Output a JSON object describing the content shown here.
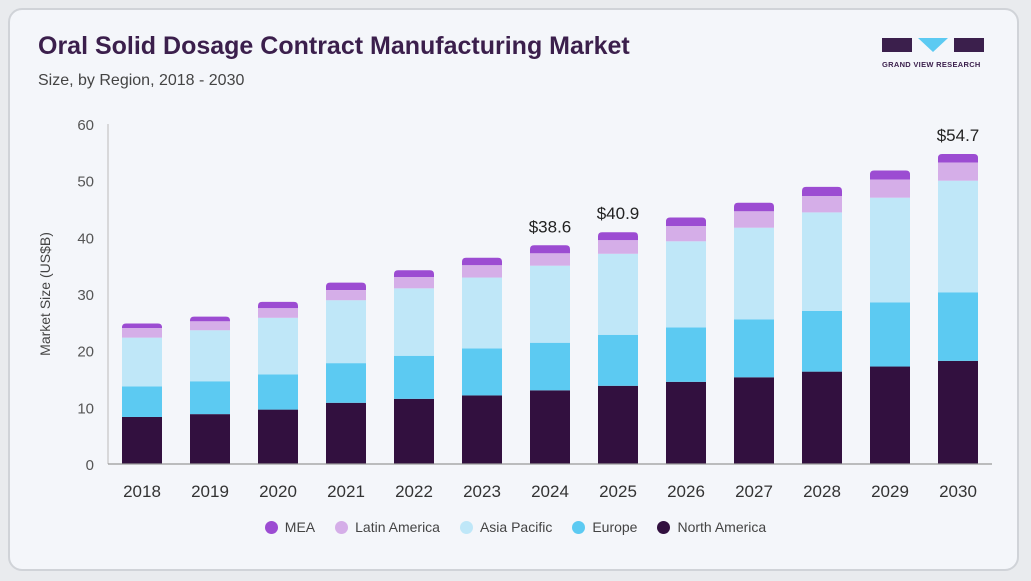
{
  "header": {
    "title": "Oral Solid Dosage Contract Manufacturing Market",
    "subtitle": "Size, by Region, 2018 - 2030",
    "logo_text": "GRAND VIEW RESEARCH"
  },
  "chart_data": {
    "type": "bar",
    "stacked": true,
    "categories": [
      "2018",
      "2019",
      "2020",
      "2021",
      "2022",
      "2023",
      "2024",
      "2025",
      "2026",
      "2027",
      "2028",
      "2029",
      "2030"
    ],
    "series": [
      {
        "name": "North America",
        "color": "#32103f",
        "values": [
          8.3,
          8.8,
          9.6,
          10.8,
          11.5,
          12.1,
          13.0,
          13.8,
          14.5,
          15.3,
          16.3,
          17.2,
          18.2
        ]
      },
      {
        "name": "Europe",
        "color": "#5ccaf2",
        "values": [
          5.4,
          5.8,
          6.2,
          7.0,
          7.6,
          8.3,
          8.4,
          9.0,
          9.6,
          10.2,
          10.7,
          11.3,
          12.1
        ]
      },
      {
        "name": "Asia Pacific",
        "color": "#bfe7f8",
        "values": [
          8.6,
          9.0,
          10.0,
          11.1,
          11.9,
          12.5,
          13.6,
          14.3,
          15.2,
          16.2,
          17.4,
          18.5,
          19.7
        ]
      },
      {
        "name": "Latin America",
        "color": "#d5aee8",
        "values": [
          1.7,
          1.6,
          1.7,
          1.8,
          2.0,
          2.2,
          2.2,
          2.4,
          2.7,
          2.9,
          2.9,
          3.2,
          3.2
        ]
      },
      {
        "name": "MEA",
        "color": "#9c4cd2",
        "values": [
          0.8,
          0.8,
          1.1,
          1.3,
          1.2,
          1.3,
          1.4,
          1.4,
          1.5,
          1.5,
          1.6,
          1.6,
          1.5
        ]
      }
    ],
    "legend_order": [
      "MEA",
      "Latin America",
      "Asia Pacific",
      "Europe",
      "North America"
    ],
    "annotations": [
      {
        "category": "2024",
        "label": "$38.6"
      },
      {
        "category": "2025",
        "label": "$40.9"
      },
      {
        "category": "2030",
        "label": "$54.7"
      }
    ],
    "ylabel": "Market Size (US$B)",
    "xlabel": "",
    "ylim": [
      0,
      60
    ],
    "yticks": [
      0,
      10,
      20,
      30,
      40,
      50,
      60
    ],
    "grid": false,
    "legend_position": "bottom"
  }
}
